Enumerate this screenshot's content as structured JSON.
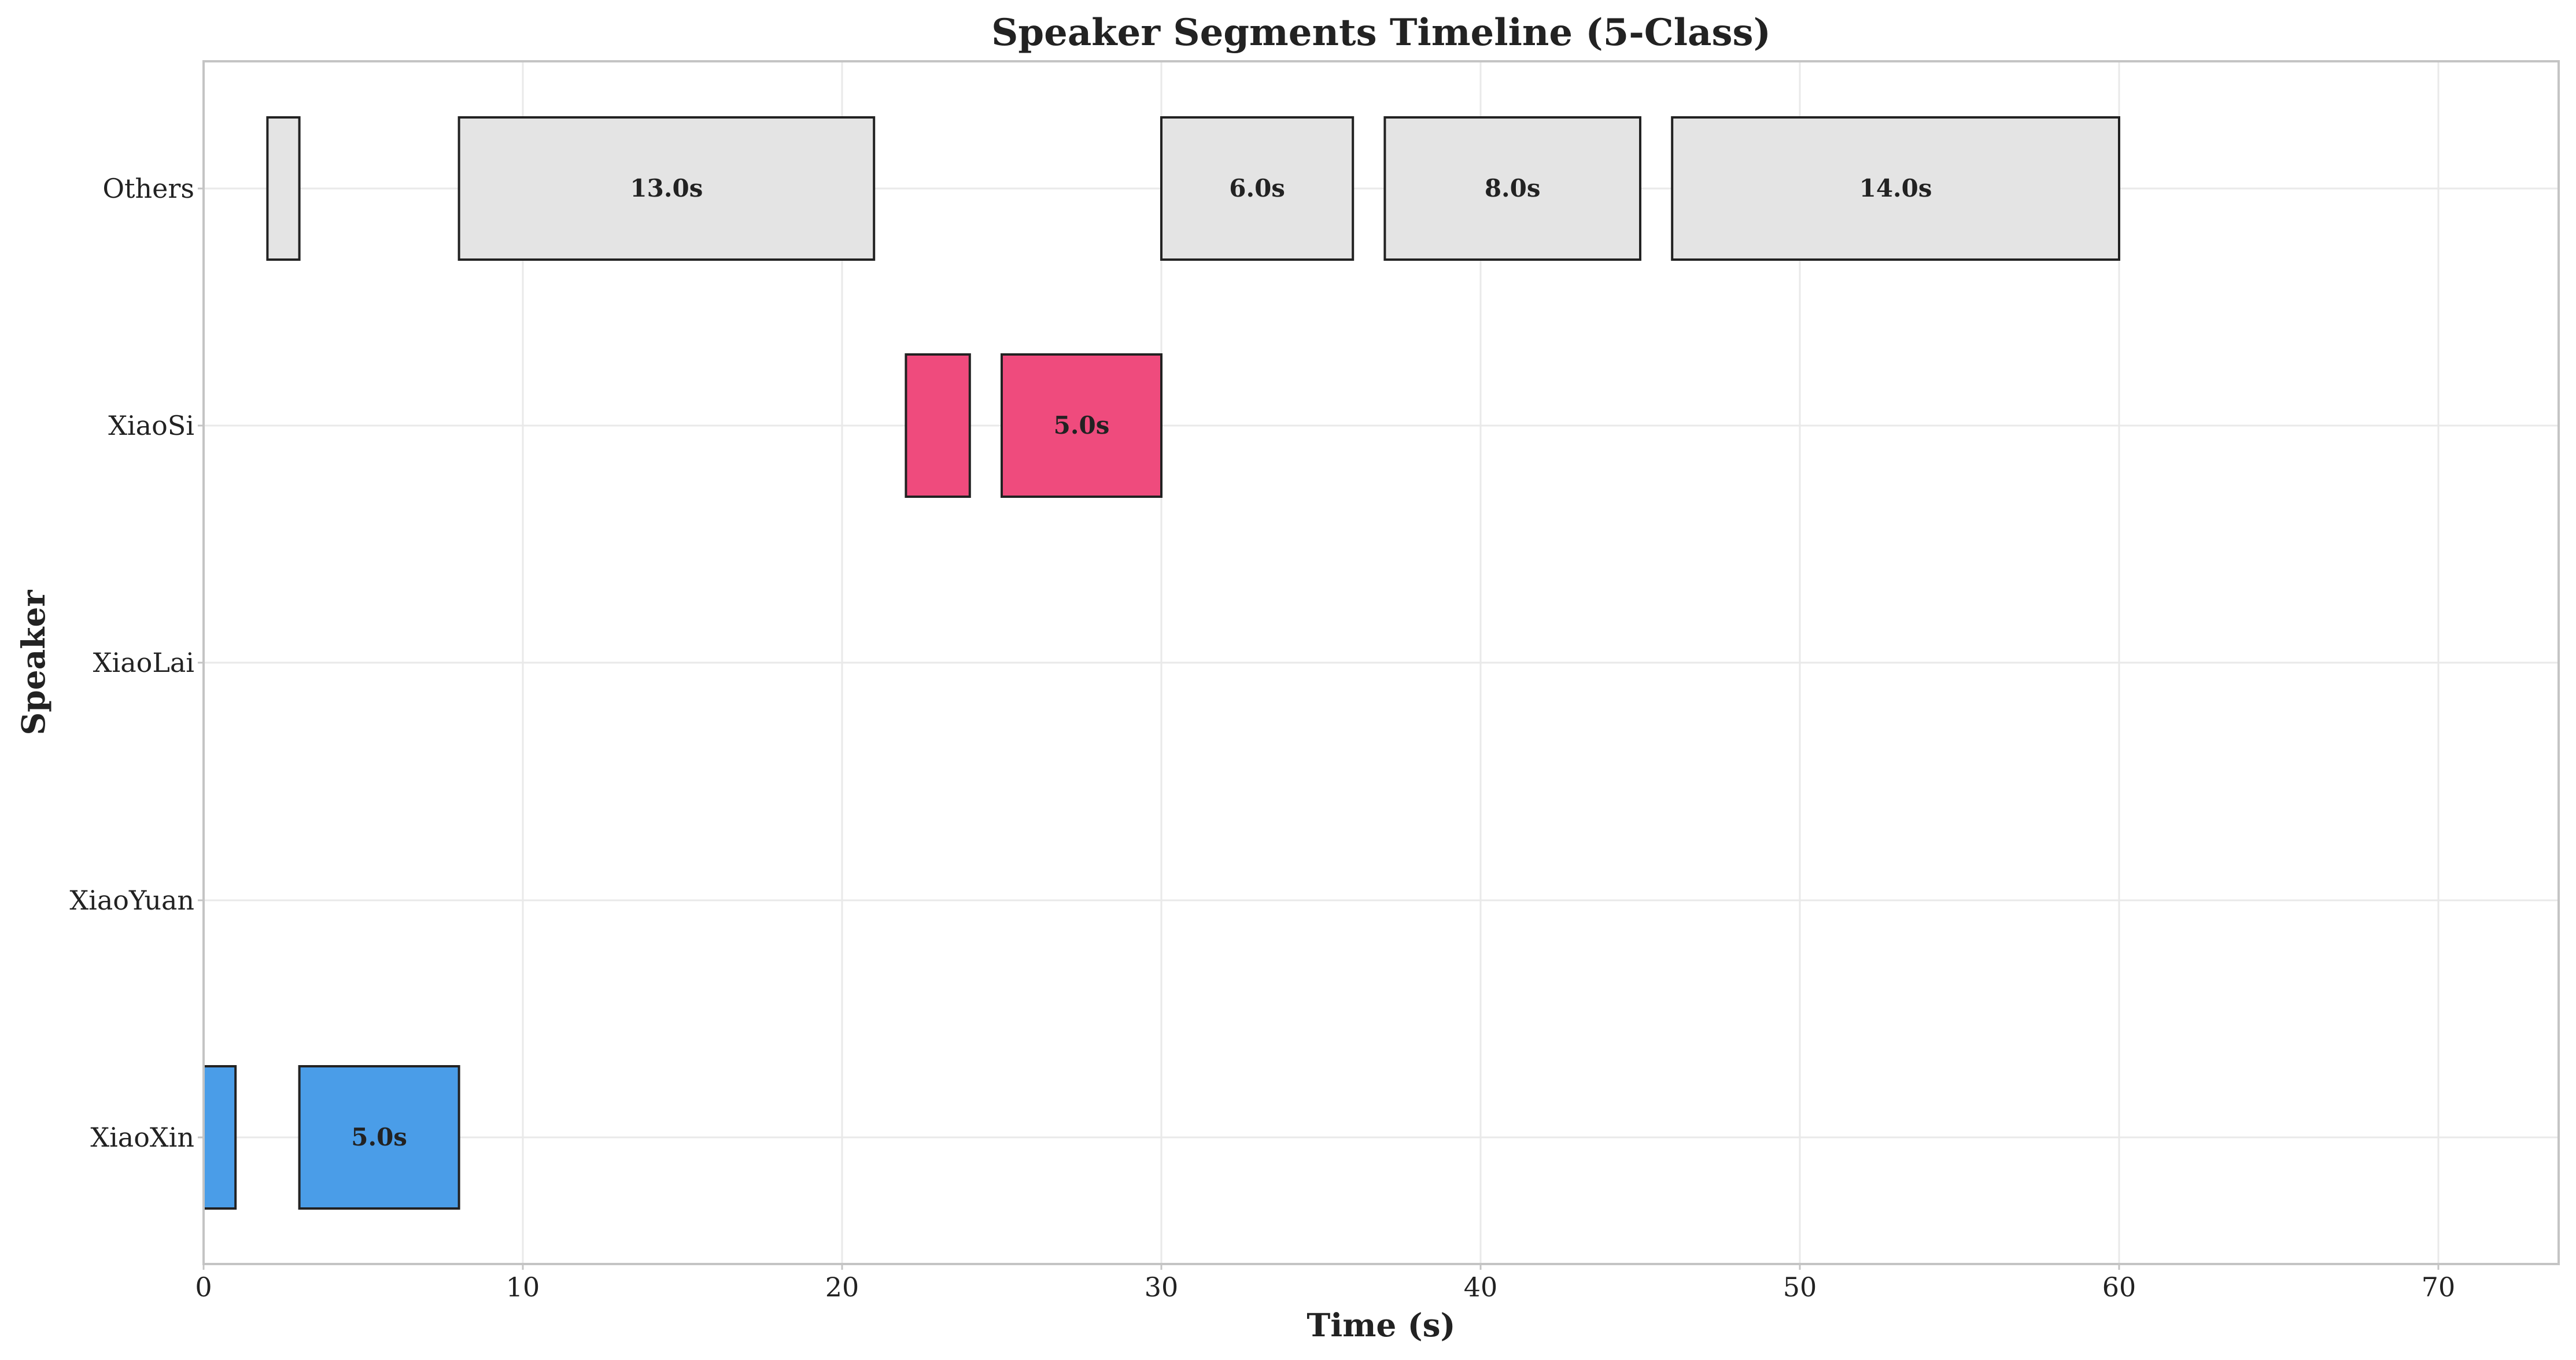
{
  "chart_data": {
    "type": "timeline",
    "title": "Speaker Segments Timeline (5-Class)",
    "xlabel": "Time (s)",
    "ylabel": "Speaker",
    "xlim": [
      0,
      74
    ],
    "xticks": [
      0,
      10,
      20,
      30,
      40,
      50,
      60,
      70
    ],
    "grid": true,
    "categories": [
      "XiaoXin",
      "XiaoYuan",
      "XiaoLai",
      "XiaoSi",
      "Others"
    ],
    "colors": {
      "XiaoXin": "#4a9de8",
      "XiaoYuan": "#f0a030",
      "XiaoLai": "#5cb85c",
      "XiaoSi": "#ef4b7d",
      "Others": "#e4e4e4"
    },
    "segments": [
      {
        "speaker": "XiaoXin",
        "start": 0,
        "end": 1,
        "label": ""
      },
      {
        "speaker": "XiaoXin",
        "start": 3,
        "end": 8,
        "label": "5.0s"
      },
      {
        "speaker": "XiaoSi",
        "start": 22,
        "end": 24,
        "label": ""
      },
      {
        "speaker": "XiaoSi",
        "start": 25,
        "end": 30,
        "label": "5.0s"
      },
      {
        "speaker": "Others",
        "start": 2,
        "end": 3,
        "label": ""
      },
      {
        "speaker": "Others",
        "start": 8,
        "end": 21,
        "label": "13.0s"
      },
      {
        "speaker": "Others",
        "start": 30,
        "end": 36,
        "label": "6.0s"
      },
      {
        "speaker": "Others",
        "start": 37,
        "end": 45,
        "label": "8.0s"
      },
      {
        "speaker": "Others",
        "start": 46,
        "end": 60,
        "label": "14.0s"
      }
    ]
  }
}
